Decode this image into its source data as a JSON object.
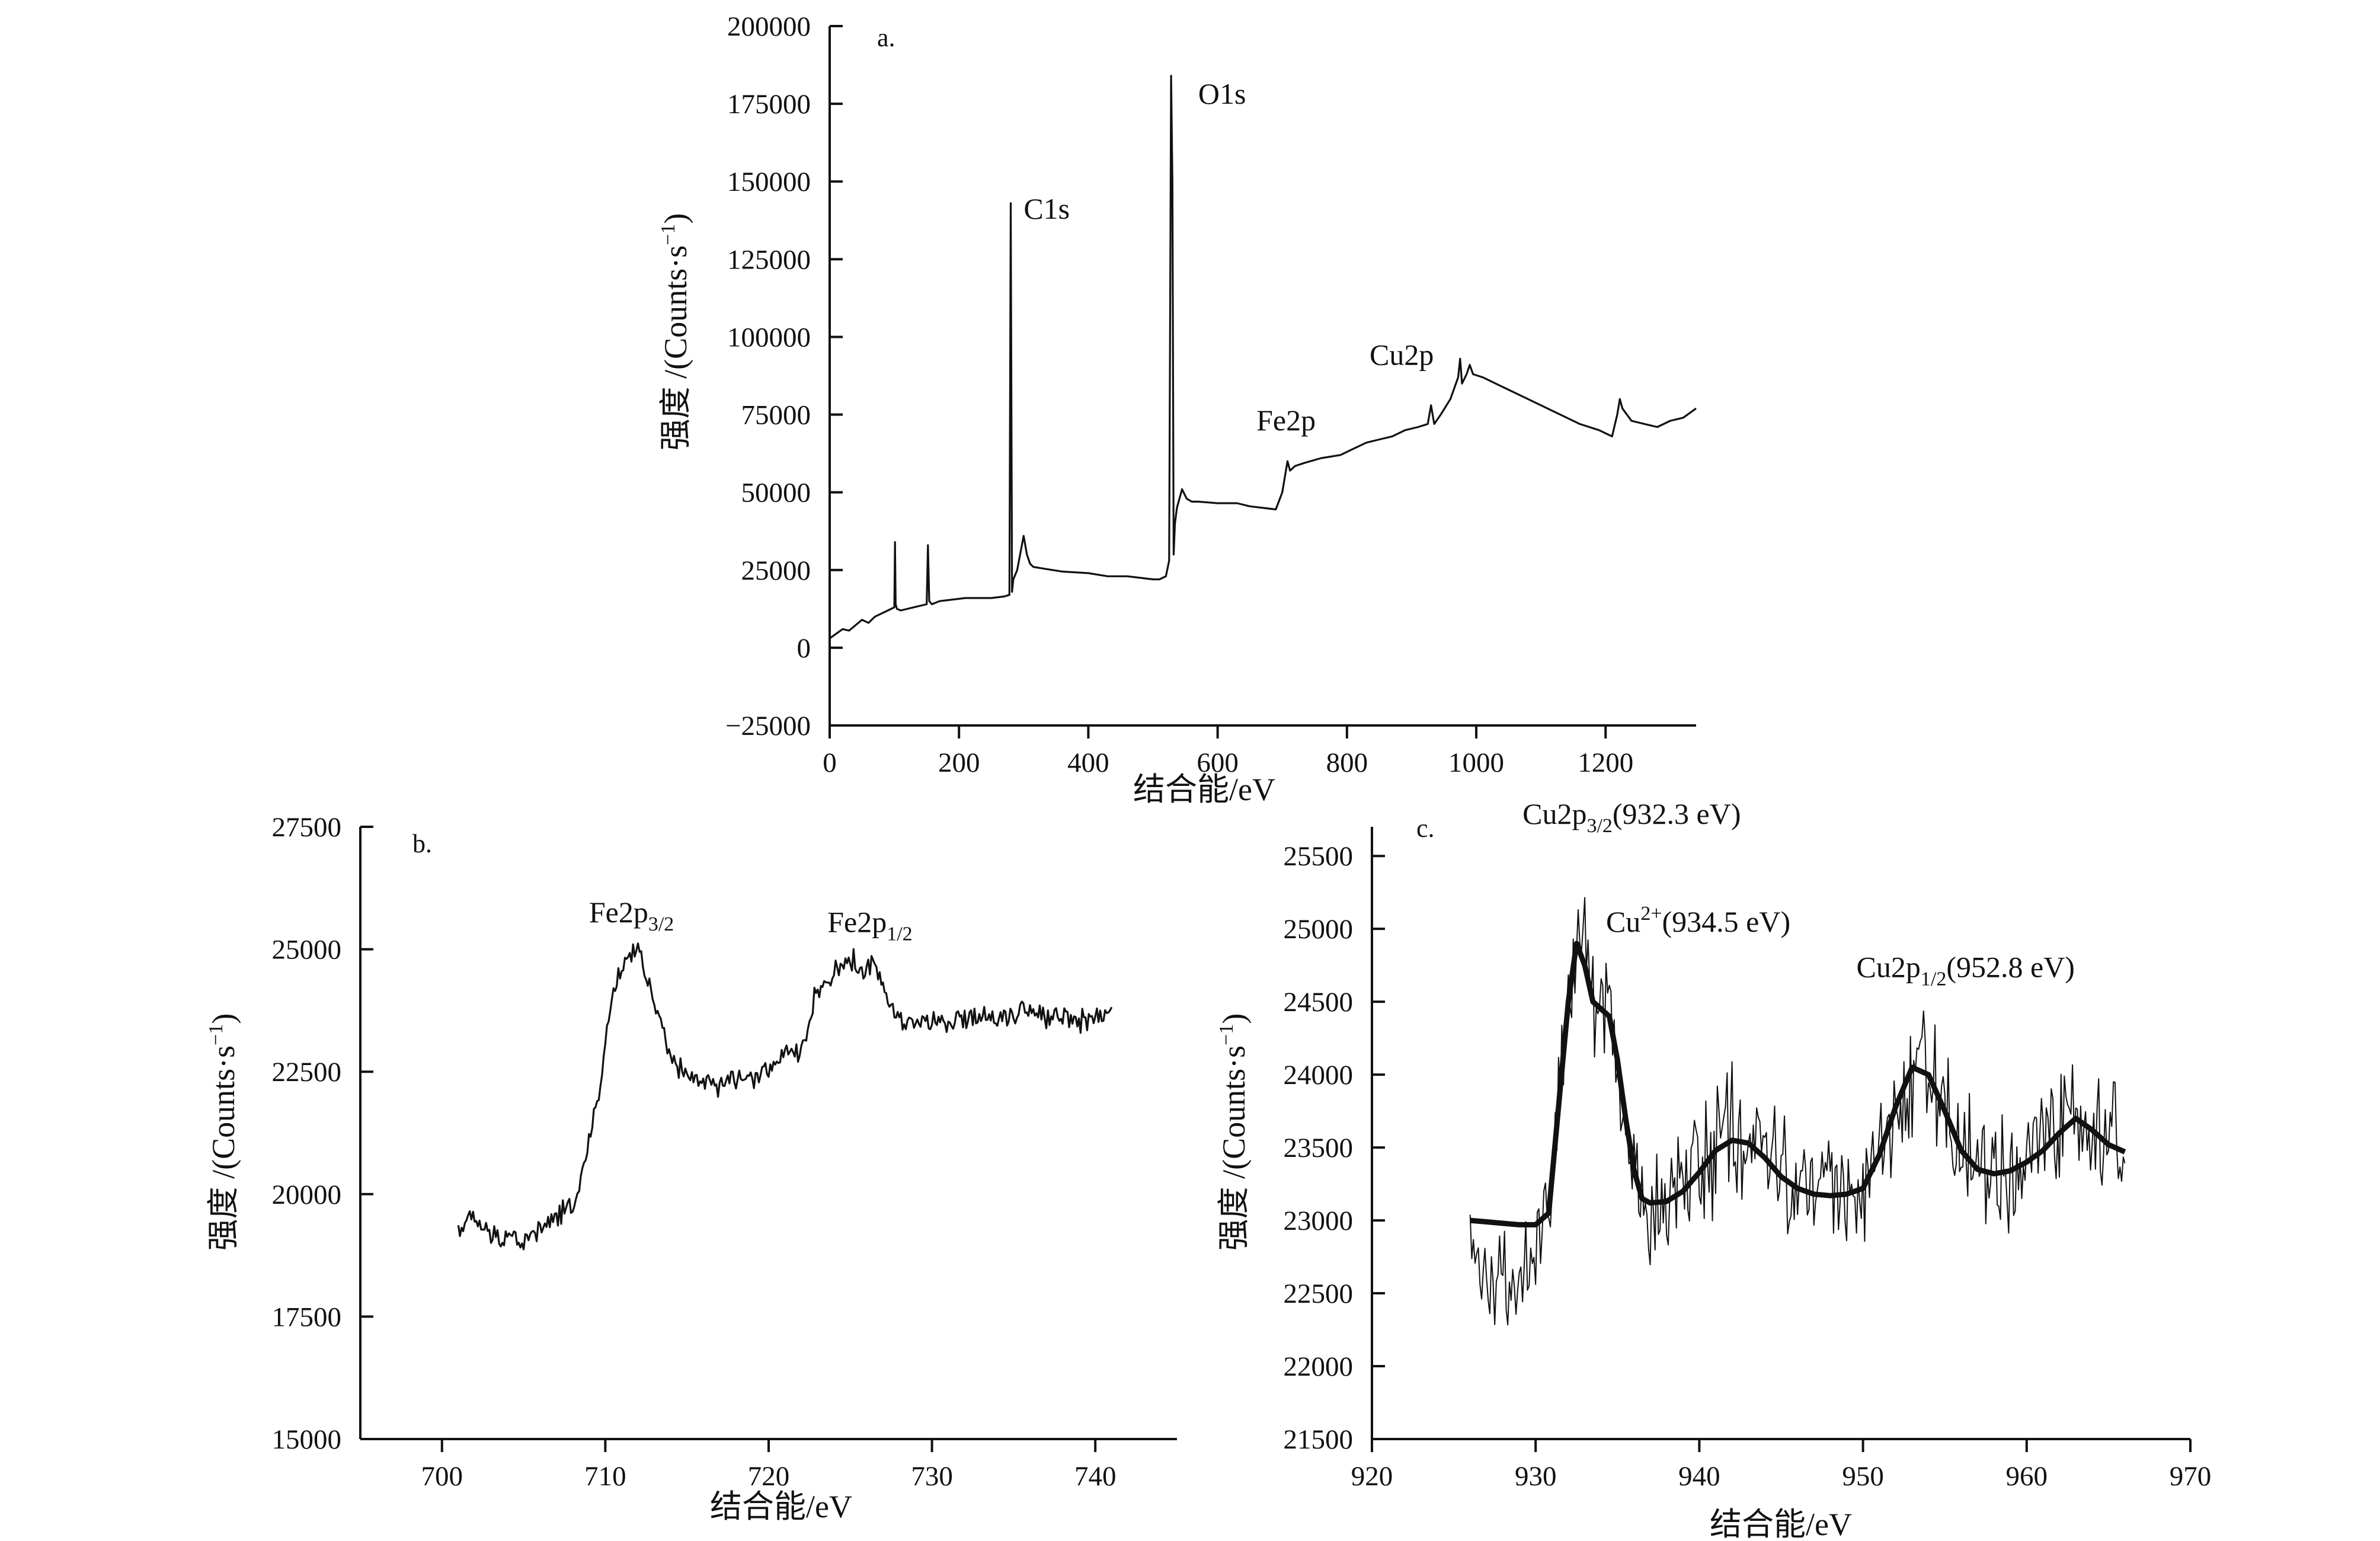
{
  "figure": {
    "panels": [
      "a.",
      "b.",
      "c."
    ]
  },
  "chart_data": [
    {
      "id": "a",
      "type": "line",
      "panel_label": "a.",
      "xlabel": "结合能/eV",
      "ylabel": "强度 /(Counts·s⁻¹)",
      "xlim": [
        0,
        1340
      ],
      "ylim": [
        -25000,
        200000
      ],
      "xticks": [
        0,
        200,
        400,
        600,
        800,
        1000,
        1200
      ],
      "yticks": [
        -25000,
        0,
        25000,
        50000,
        75000,
        100000,
        125000,
        150000,
        175000,
        200000
      ],
      "ytick_labels": [
        "−25000",
        "0",
        "25000",
        "50000",
        "75000",
        "100000",
        "125000",
        "150000",
        "175000",
        "200000"
      ],
      "annotations": [
        {
          "text": "C1s",
          "x": 300,
          "y": 138000
        },
        {
          "text": "O1s",
          "x": 570,
          "y": 175000
        },
        {
          "text": "Fe2p",
          "x": 660,
          "y": 70000
        },
        {
          "text": "Cu2p",
          "x": 835,
          "y": 91000
        }
      ],
      "series": [
        {
          "x": [
            0,
            10,
            20,
            30,
            50,
            60,
            70,
            80,
            90,
            100,
            101,
            102,
            104,
            110,
            120,
            130,
            150,
            152,
            154,
            158,
            170,
            190,
            210,
            230,
            250,
            270,
            278,
            280,
            282,
            284,
            290,
            300,
            305,
            310,
            315,
            330,
            360,
            400,
            430,
            460,
            480,
            500,
            510,
            520,
            525,
            528,
            530,
            532,
            534,
            537,
            545,
            552,
            560,
            570,
            600,
            630,
            650,
            670,
            690,
            700,
            708,
            712,
            720,
            735,
            760,
            790,
            810,
            830,
            850,
            870,
            890,
            910,
            925,
            930,
            935,
            945,
            960,
            972,
            975,
            978,
            985,
            990,
            995,
            1010,
            1040,
            1070,
            1100,
            1130,
            1160,
            1190,
            1210,
            1218,
            1222,
            1226,
            1240,
            1260,
            1280,
            1300,
            1320,
            1340
          ],
          "y": [
            3000,
            4500,
            6000,
            5500,
            9000,
            8000,
            10000,
            11000,
            12000,
            13000,
            34000,
            14000,
            12500,
            12000,
            12500,
            13000,
            14000,
            33000,
            15000,
            14000,
            15000,
            15500,
            16000,
            16000,
            16000,
            16500,
            17000,
            143000,
            18000,
            22000,
            25000,
            36000,
            30000,
            27000,
            26000,
            25500,
            24500,
            24000,
            23000,
            23000,
            22500,
            22000,
            22000,
            23000,
            28000,
            184000,
            150000,
            30000,
            40000,
            45000,
            51000,
            48000,
            47000,
            47000,
            46500,
            46500,
            45500,
            45000,
            44500,
            50000,
            60000,
            57000,
            58500,
            59500,
            61000,
            62000,
            64000,
            66000,
            67000,
            68000,
            70000,
            71000,
            72000,
            78000,
            72000,
            75000,
            80000,
            87000,
            93000,
            85000,
            88000,
            91000,
            88000,
            87000,
            84000,
            81000,
            78000,
            75000,
            72000,
            70000,
            68000,
            75000,
            80000,
            77000,
            73000,
            72000,
            71000,
            73000,
            74000,
            77000
          ]
        }
      ]
    },
    {
      "id": "b",
      "type": "line",
      "panel_label": "b.",
      "xlabel": "结合能/eV",
      "ylabel": "强度 /(Counts·s⁻¹)",
      "xlim": [
        695,
        745
      ],
      "ylim": [
        15000,
        27500
      ],
      "xticks": [
        700,
        710,
        720,
        730,
        740
      ],
      "yticks": [
        15000,
        17500,
        20000,
        22500,
        25000,
        27500
      ],
      "annotations": [
        {
          "text": "Fe2p3/2",
          "base": "Fe2p",
          "sub": "3/2",
          "x": 709.0,
          "y": 25550
        },
        {
          "text": "Fe2p1/2",
          "base": "Fe2p",
          "sub": "1/2",
          "x": 723.6,
          "y": 25350
        }
      ],
      "series": [
        {
          "x": [
            701,
            702,
            703,
            704,
            705,
            706,
            707,
            708,
            708.5,
            709,
            709.5,
            710,
            710.5,
            711,
            711.5,
            712,
            712.5,
            713,
            713.5,
            714,
            715,
            716,
            717,
            718,
            719,
            720,
            721,
            722,
            722.5,
            723,
            723.5,
            724,
            724.5,
            725,
            725.5,
            726,
            726.5,
            727,
            727.5,
            728,
            729,
            730,
            731,
            732,
            733,
            734,
            735,
            736,
            737,
            738,
            739,
            740,
            741
          ],
          "y": [
            19300,
            19500,
            19100,
            19200,
            19000,
            19300,
            19500,
            19800,
            20300,
            21000,
            21900,
            23000,
            24200,
            24600,
            24900,
            25100,
            24400,
            23800,
            23400,
            22700,
            22400,
            22300,
            22200,
            22400,
            22300,
            22600,
            22800,
            22900,
            23600,
            24200,
            24300,
            24500,
            24700,
            24800,
            24650,
            24550,
            24700,
            24300,
            23800,
            23600,
            23500,
            23550,
            23400,
            23600,
            23700,
            23600,
            23700,
            23800,
            23600,
            23700,
            23500,
            23650,
            23700
          ],
          "noise_amp": 250
        }
      ]
    },
    {
      "id": "c",
      "type": "line",
      "panel_label": "c.",
      "xlabel": "结合能/eV",
      "ylabel": "强度 /(Counts·s⁻¹)",
      "xlim": [
        920,
        970
      ],
      "ylim": [
        21500,
        25700
      ],
      "xticks": [
        920,
        930,
        940,
        950,
        960,
        970
      ],
      "yticks": [
        21500,
        22000,
        22500,
        23000,
        23500,
        24000,
        24500,
        25000,
        25500
      ],
      "annotations": [
        {
          "text": "Cu2p3/2(932.3 eV)",
          "base": "Cu2p",
          "sub": "3/2",
          "tail": "(932.3 eV)",
          "x": 929.2,
          "y": 25720
        },
        {
          "text": "Cu2+(934.5 eV)",
          "base": "Cu",
          "sup": "2+",
          "tail": "(934.5 eV)",
          "x": 934.3,
          "y": 24980
        },
        {
          "text": "Cu2p1/2(952.8 eV)",
          "base": "Cu2p",
          "sub": "1/2",
          "tail": "(952.8 eV)",
          "x": 949.6,
          "y": 24670
        }
      ],
      "series": [
        {
          "name": "fit",
          "x": [
            926,
            927,
            928,
            929,
            930,
            930.8,
            931.5,
            932,
            932.5,
            933,
            933.5,
            934,
            934.5,
            935,
            935.5,
            936,
            936.5,
            937,
            938,
            939,
            940,
            941,
            942,
            943,
            944,
            945,
            946,
            947,
            948,
            949,
            950,
            951,
            952,
            953,
            954,
            955,
            956,
            957,
            958,
            959,
            960,
            961,
            962,
            963,
            964,
            965,
            966
          ],
          "y": [
            23000,
            22990,
            22980,
            22970,
            22970,
            23050,
            23900,
            24500,
            24900,
            24750,
            24500,
            24450,
            24400,
            24100,
            23700,
            23350,
            23150,
            23120,
            23130,
            23200,
            23330,
            23480,
            23550,
            23530,
            23430,
            23300,
            23220,
            23180,
            23170,
            23180,
            23220,
            23450,
            23780,
            24050,
            24000,
            23750,
            23480,
            23350,
            23320,
            23340,
            23400,
            23480,
            23600,
            23700,
            23620,
            23520,
            23470
          ]
        },
        {
          "name": "raw",
          "x": [
            926,
            927,
            928,
            929,
            930,
            930.8,
            931.5,
            932,
            932.5,
            933,
            933.5,
            934,
            934.5,
            935,
            935.5,
            936,
            936.5,
            937,
            938,
            939,
            940,
            941,
            942,
            943,
            944,
            945,
            946,
            947,
            948,
            949,
            950,
            951,
            952,
            953,
            954,
            955,
            956,
            957,
            958,
            959,
            960,
            961,
            962,
            963,
            964,
            965,
            966
          ],
          "y": [
            22750,
            22700,
            22500,
            22650,
            22850,
            23100,
            23900,
            24450,
            24950,
            24800,
            24600,
            24500,
            24450,
            24050,
            23650,
            23300,
            23150,
            23100,
            23150,
            23250,
            23350,
            23500,
            23600,
            23550,
            23450,
            23300,
            23250,
            23200,
            23150,
            23200,
            23200,
            23500,
            23800,
            24050,
            24000,
            23750,
            23500,
            23350,
            23300,
            23350,
            23400,
            23500,
            23650,
            23700,
            23600,
            23550,
            23450
          ],
          "noise_amp": 450
        }
      ]
    }
  ]
}
